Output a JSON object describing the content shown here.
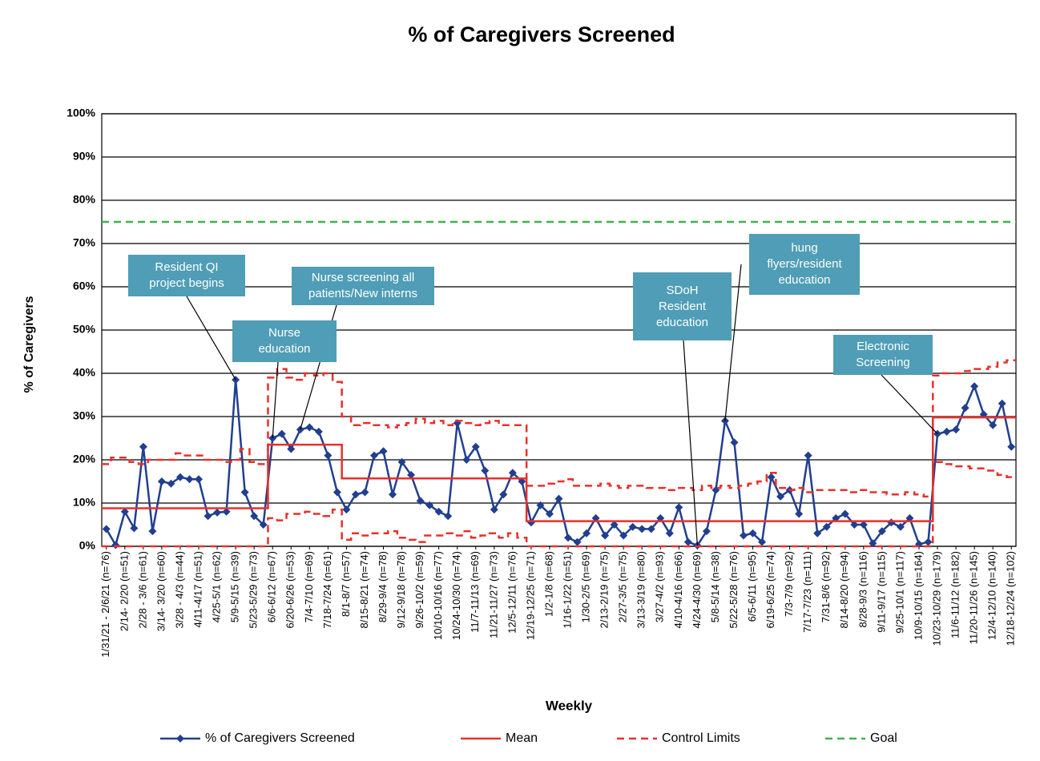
{
  "chart_data": {
    "type": "line",
    "title": "% of Caregivers Screened",
    "xlabel": "Weekly",
    "ylabel": "% of Caregivers",
    "ylim": [
      0,
      100
    ],
    "yticks": [
      {
        "value": 0,
        "label": "0%"
      },
      {
        "value": 10,
        "label": "10%"
      },
      {
        "value": 20,
        "label": "20%"
      },
      {
        "value": 30,
        "label": "30%"
      },
      {
        "value": 40,
        "label": "40%"
      },
      {
        "value": 50,
        "label": "50%"
      },
      {
        "value": 60,
        "label": "60%"
      },
      {
        "value": 70,
        "label": "70%"
      },
      {
        "value": 80,
        "label": "80%"
      },
      {
        "value": 90,
        "label": "90%"
      },
      {
        "value": 100,
        "label": "100%"
      }
    ],
    "grid": true,
    "categories": [
      "1/31/21 - 2/6/21 (n=76)",
      null,
      "2/14- 2/20 (n=51)",
      null,
      "2/28 - 3/6 (n=61)",
      null,
      "3/14- 3/20 (n=60)",
      null,
      "3/28 - 4/3 (n=44)",
      null,
      "4/11-4/17 (n=51)",
      null,
      "4/25-5/1 (n=62)",
      null,
      "5/9-5/15 (n=39)",
      null,
      "5/23-5/29 (n=73)",
      null,
      "6/6-6/12 (n=67)",
      null,
      "6/20-6/26 (n=53)",
      null,
      "7/4-7/10 (n=69)",
      null,
      "7/18-7/24 (n=61)",
      null,
      "8/1-8/7 (n=57)",
      null,
      "8/15-8/21 (n=74)",
      null,
      "8/29-9/4 (n=78)",
      null,
      "9/12-9/18 (n=78)",
      null,
      "9/26-10/2 (n=59)",
      null,
      "10/10-10/16 (n=77)",
      null,
      "10/24-10/30 (n=74)",
      null,
      "11/7-11/13 (n=69)",
      null,
      "11/21-11/27 (n=73)",
      null,
      "12/5-12/11 (n=76)",
      null,
      "12/19-12/25 (n=71)",
      null,
      "1/2-1/8 (n=68)",
      null,
      "1/16-1/22 (n=51)",
      null,
      "1/30-2/5 (n=69)",
      null,
      "2/13-2/19 (n=75)",
      null,
      "2/27-3/5 (n=75)",
      null,
      "3/13-3/19 (n=80)",
      null,
      "3/27-4/2 (n=93)",
      null,
      "4/10-4/16 (n=66)",
      null,
      "4/24-4/30 (n=69)",
      null,
      "5/8-5/14 (n=38)",
      null,
      "5/22-5/28 (n=76)",
      null,
      "6/5-6/11 (n=95)",
      null,
      "6/19-6/25 (n=74)",
      null,
      "7/3-7/9 (n=92)",
      null,
      "7/17-7/23 (n=111)",
      null,
      "7/31-8/6 (n=92)",
      null,
      "8/14-8/20 (n=94)",
      null,
      "8/28-9/3 (n=116)",
      null,
      "9/11-9/17 (n=115)",
      null,
      "9/25-10/1 (n=117)",
      null,
      "10/9-10/15 (n=164)",
      null,
      "10/23-10/29 (n=179)",
      null,
      "11/6-11/12 (n=182)",
      null,
      "11/20-11/26 (n=145)",
      null,
      "12/4-12/10 (n=140)",
      null,
      "12/18-12/24 (n=102)"
    ],
    "series": [
      {
        "name": "% of Caregivers Screened",
        "color": "#213f8f",
        "marker": "diamond",
        "values": [
          4,
          0.3,
          8,
          4.2,
          23,
          3.5,
          15,
          14.5,
          16,
          15.5,
          15.5,
          7,
          7.8,
          8,
          38.5,
          12.5,
          7,
          5,
          25,
          26,
          22.5,
          27,
          27.5,
          26.5,
          21,
          12.5,
          8.5,
          12,
          12.5,
          21,
          22,
          12,
          19.5,
          16.5,
          10.5,
          9.5,
          8,
          7,
          28.5,
          20,
          23,
          17.5,
          8.5,
          12,
          17,
          15,
          5.5,
          9.5,
          7.5,
          11,
          2,
          1,
          3,
          6.5,
          2.5,
          5,
          2.5,
          4.5,
          4,
          4,
          6.5,
          3,
          9,
          1,
          0.2,
          3.5,
          13,
          29,
          24,
          2.5,
          3,
          1,
          16,
          11.5,
          13,
          7.5,
          21,
          3,
          4.5,
          6.5,
          7.5,
          5,
          5,
          0.7,
          3.5,
          5.5,
          4.5,
          6.5,
          0.5,
          1,
          26,
          26.5,
          27,
          32,
          37,
          30.5,
          28,
          33,
          23
        ]
      },
      {
        "name": "Mean",
        "color": "#e8302a",
        "step": true,
        "values": [
          8.8,
          8.8,
          8.8,
          8.8,
          8.8,
          8.8,
          8.8,
          8.8,
          8.8,
          8.8,
          8.8,
          8.8,
          8.8,
          8.8,
          8.8,
          8.8,
          8.8,
          8.8,
          23.5,
          23.5,
          23.5,
          23.5,
          23.5,
          23.5,
          23.5,
          23.5,
          15.7,
          15.7,
          15.7,
          15.7,
          15.7,
          15.7,
          15.7,
          15.7,
          15.7,
          15.7,
          15.7,
          15.7,
          15.7,
          15.7,
          15.7,
          15.7,
          15.7,
          15.7,
          15.7,
          15.7,
          5.8,
          5.8,
          5.8,
          5.8,
          5.8,
          5.8,
          5.8,
          5.8,
          5.8,
          5.8,
          5.8,
          5.8,
          5.8,
          5.8,
          5.8,
          5.8,
          5.8,
          5.8,
          5.8,
          5.8,
          5.8,
          5.8,
          5.8,
          5.8,
          5.8,
          5.8,
          5.8,
          5.8,
          5.8,
          5.8,
          5.8,
          5.8,
          5.8,
          5.8,
          5.8,
          5.8,
          5.8,
          5.8,
          5.8,
          5.8,
          5.8,
          5.8,
          5.8,
          5.8,
          29.8,
          29.8,
          29.8,
          29.8,
          29.8,
          29.8,
          29.8,
          29.8,
          29.8
        ]
      },
      {
        "name": "Control Limits",
        "color": "#e8302a",
        "step": true,
        "dash": true,
        "values": [
          19,
          20.5,
          20.5,
          19.5,
          19,
          20,
          20,
          20,
          21.5,
          21,
          21,
          20,
          20,
          19.5,
          20,
          22.5,
          19.5,
          19,
          39,
          41,
          39,
          38.5,
          40,
          39.5,
          40,
          38,
          30,
          28,
          28.5,
          28,
          28,
          27.5,
          28,
          28.5,
          29.5,
          28.5,
          29,
          28,
          29,
          28.5,
          28,
          28.5,
          29,
          28,
          28,
          28,
          14,
          14,
          14.5,
          15,
          15.5,
          14,
          14,
          14,
          14.5,
          14,
          13.5,
          14,
          14,
          13.5,
          13.5,
          13,
          13.5,
          13.5,
          13,
          14,
          13.5,
          14,
          13.5,
          14,
          14.5,
          15,
          17,
          13.5,
          13,
          13.5,
          12.5,
          13,
          13,
          13,
          13,
          12.5,
          13,
          12.5,
          12.5,
          12,
          12,
          12.5,
          12,
          11.5,
          39.5,
          40,
          40,
          40.5,
          41,
          41,
          41.5,
          42.5,
          43
        ],
        "lower": [
          0,
          0,
          0,
          0,
          0,
          0,
          0,
          0,
          0,
          0,
          0,
          0,
          0,
          0,
          0,
          0,
          0,
          0,
          6.5,
          6,
          7.5,
          7.5,
          8,
          7.5,
          7,
          8.5,
          1.5,
          3,
          2.5,
          3,
          3,
          3.5,
          2,
          1.5,
          1,
          2.5,
          2.5,
          3,
          2.5,
          3.5,
          2,
          2.5,
          3,
          2,
          3,
          2,
          0,
          0,
          0,
          0,
          0,
          0,
          0,
          0,
          0,
          0,
          0,
          0,
          0,
          0,
          0,
          0,
          0,
          0,
          0,
          0,
          0,
          0,
          0,
          0,
          0,
          0,
          0,
          0,
          0,
          0,
          0,
          0,
          0,
          0,
          0,
          0,
          0,
          0,
          0,
          0,
          0,
          0,
          0,
          0,
          19.5,
          19,
          18.5,
          18.5,
          18,
          18,
          17.5,
          16.5,
          16
        ]
      },
      {
        "name": "Goal",
        "color": "#3cb44b",
        "dash": true,
        "value": 75
      }
    ],
    "annotations": [
      "Resident QI project begins",
      "Nurse education",
      "Nurse screening all patients/New interns",
      "SDoH Resident education",
      "hung flyers/resident education",
      "Electronic Screening"
    ]
  }
}
